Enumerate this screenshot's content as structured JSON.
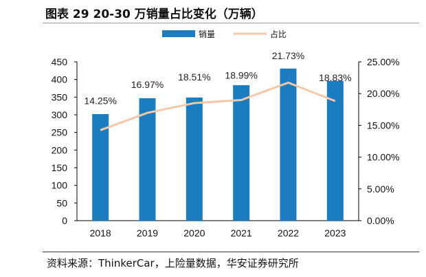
{
  "title": "图表 29 20-30 万销量占比变化（万辆）",
  "source": "资料来源：ThinkerCar，上险量数据，华安证券研究所",
  "chart_data": {
    "type": "bar+line",
    "categories": [
      "2018",
      "2019",
      "2020",
      "2021",
      "2022",
      "2023"
    ],
    "series": [
      {
        "name": "销量",
        "type": "bar",
        "axis": "left",
        "values": [
          302,
          347,
          349,
          384,
          431,
          396
        ],
        "color": "#1a7dc0"
      },
      {
        "name": "占比",
        "type": "line",
        "axis": "right",
        "values": [
          14.25,
          16.97,
          18.51,
          18.99,
          21.73,
          18.83
        ],
        "labels": [
          "14.25%",
          "16.97%",
          "18.51%",
          "18.99%",
          "21.73%",
          "18.83%"
        ],
        "color": "#f4c7a8"
      }
    ],
    "ylim": [
      0,
      450
    ],
    "yticks": [
      "0",
      "50",
      "100",
      "150",
      "200",
      "250",
      "300",
      "350",
      "400",
      "450"
    ],
    "y2lim": [
      0,
      25
    ],
    "y2ticks": [
      "0.00%",
      "5.00%",
      "10.00%",
      "15.00%",
      "20.00%",
      "25.00%"
    ],
    "legend": "top",
    "grid": false
  }
}
